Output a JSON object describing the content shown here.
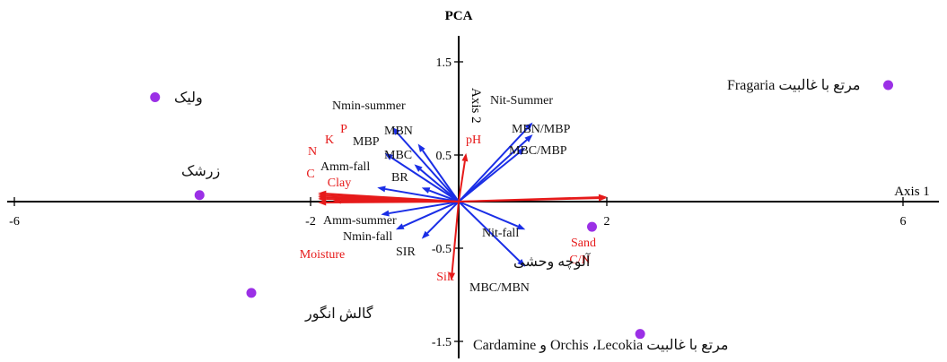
{
  "chart_data": {
    "type": "scatter",
    "title": "PCA",
    "xlabel": "Axis 1",
    "ylabel": "Axis 2",
    "xlim": [
      -6.2,
      6.4
    ],
    "ylim": [
      -1.85,
      2.1
    ],
    "xticks": [
      {
        "value": -6,
        "label": "-6"
      },
      {
        "value": -2,
        "label": "-2"
      },
      {
        "value": 2,
        "label": "2"
      },
      {
        "value": 6,
        "label": "6"
      }
    ],
    "yticks": [
      {
        "value": 1.5,
        "label": "1.5"
      },
      {
        "value": 0.5,
        "label": "0.5"
      },
      {
        "value": -0.5,
        "label": "-0.5"
      },
      {
        "value": -1.5,
        "label": "-1.5"
      }
    ],
    "colors": {
      "point": "#9b30e6",
      "blue_vector": "#1a2ee6",
      "red_vector": "#e61a1a",
      "axis": "#000000"
    },
    "points": [
      {
        "label": "ولیک",
        "x": -4.1,
        "y": 1.12
      },
      {
        "label": "زرشک",
        "x": -3.5,
        "y": 0.07
      },
      {
        "label": "گالش انگور",
        "x": -2.8,
        "y": -0.98
      },
      {
        "label": "آلوچه وحشی",
        "x": 1.8,
        "y": -0.27
      },
      {
        "label": "Fragaria مرتع با غالبیت",
        "x": 5.8,
        "y": 1.25
      },
      {
        "label": "Cardamine و Orchis ،Lecokia مرتع با غالبیت",
        "x": 2.45,
        "y": -1.42
      }
    ],
    "vectors": {
      "blue": [
        {
          "label": "Nmin-summer",
          "x": -0.9,
          "y": 0.8
        },
        {
          "label": "MBN",
          "x": -0.55,
          "y": 0.62
        },
        {
          "label": "MBP",
          "x": -1.0,
          "y": 0.52
        },
        {
          "label": "MBC",
          "x": -0.6,
          "y": 0.4
        },
        {
          "label": "BR",
          "x": -0.5,
          "y": 0.15
        },
        {
          "label": "Amm-fall",
          "x": -1.1,
          "y": 0.15
        },
        {
          "label": "Amm-summer",
          "x": -1.05,
          "y": -0.14
        },
        {
          "label": "Nmin-fall",
          "x": -0.85,
          "y": -0.3
        },
        {
          "label": "SIR",
          "x": -0.5,
          "y": -0.4
        },
        {
          "label": "Nit-Summer",
          "x": 1.0,
          "y": 0.85
        },
        {
          "label": "MBN/MBP",
          "x": 1.0,
          "y": 0.72
        },
        {
          "label": "MBC/MBP",
          "x": 0.9,
          "y": 0.58
        },
        {
          "label": "Nit-fall",
          "x": 0.9,
          "y": -0.3
        },
        {
          "label": "MBC/MBN",
          "x": 0.9,
          "y": -0.7
        }
      ],
      "red": [
        {
          "label": "P",
          "x": -1.9,
          "y": 0.09
        },
        {
          "label": "K",
          "x": -1.9,
          "y": 0.07
        },
        {
          "label": "N",
          "x": -1.9,
          "y": 0.05
        },
        {
          "label": "C",
          "x": -1.9,
          "y": 0.03
        },
        {
          "label": "Clay",
          "x": -1.7,
          "y": 0.01
        },
        {
          "label": "Moisture",
          "x": -1.9,
          "y": -0.01
        },
        {
          "label": "pH",
          "x": 0.1,
          "y": 0.52
        },
        {
          "label": "Sand",
          "x": 2.0,
          "y": 0.05
        },
        {
          "label": "C/N",
          "x": 2.0,
          "y": 0.04
        },
        {
          "label": "Silt",
          "x": -0.1,
          "y": -0.85
        }
      ]
    }
  }
}
